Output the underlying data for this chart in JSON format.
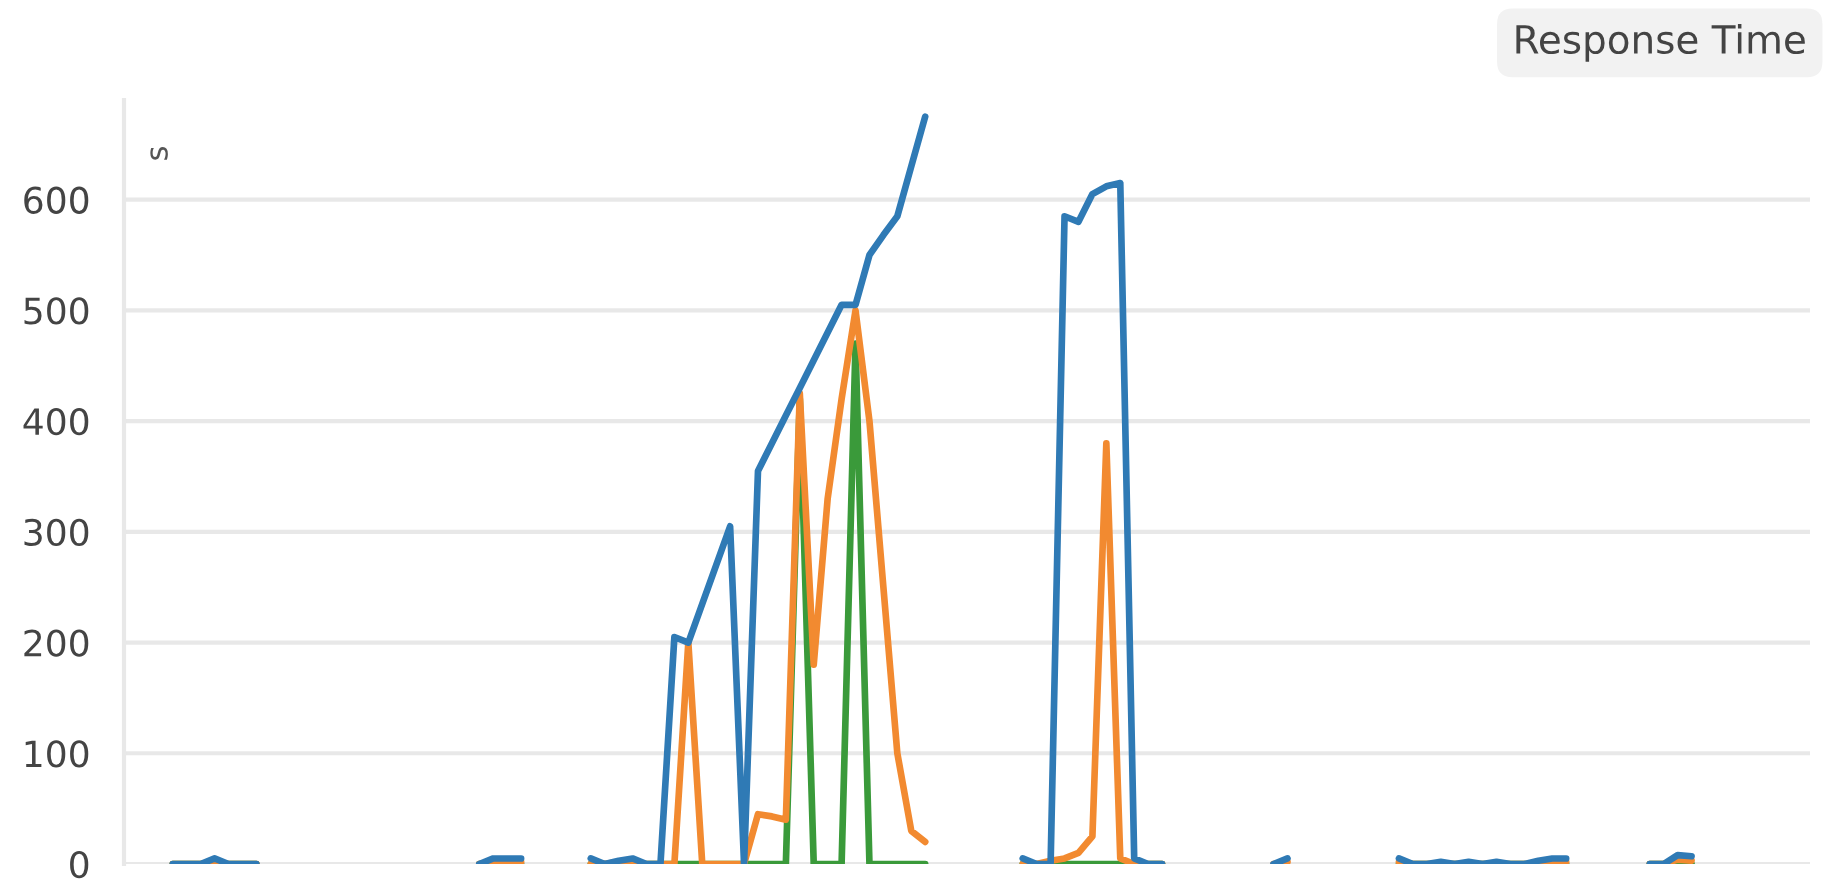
{
  "chart_data": {
    "type": "line",
    "title": "Response Time",
    "ylabel": "s",
    "categories": [
      null,
      null,
      null,
      null,
      null,
      null,
      null,
      null,
      null,
      null,
      null,
      null,
      null,
      null,
      null,
      null,
      null,
      null,
      null,
      null,
      null,
      null,
      null,
      null,
      null,
      null,
      null,
      null,
      null,
      null,
      null,
      null,
      null,
      null,
      null,
      null,
      null,
      null,
      null,
      null,
      null,
      null,
      null,
      null,
      null,
      null,
      null,
      null,
      null,
      null,
      null,
      null,
      null,
      null,
      null,
      null,
      null,
      null,
      null,
      null,
      null,
      null,
      null,
      null,
      null,
      null,
      null,
      null,
      null,
      null,
      null,
      null,
      null,
      null,
      null,
      null,
      null,
      null,
      null,
      null,
      null,
      null,
      null,
      null,
      null,
      null,
      null,
      null,
      null,
      null,
      null,
      null,
      null,
      null,
      null,
      null,
      null,
      null,
      null,
      null,
      null,
      null,
      null,
      null,
      null,
      null,
      null,
      null,
      null,
      null,
      null,
      null,
      null,
      null,
      null,
      null,
      null,
      null,
      null,
      null,
      null
    ],
    "series": [
      {
        "color": "#3a9a3a",
        "values": [
          null,
          null,
          null,
          0,
          0,
          0,
          0,
          0,
          0,
          0,
          null,
          null,
          null,
          null,
          null,
          null,
          null,
          null,
          null,
          null,
          null,
          null,
          null,
          null,
          null,
          0,
          0,
          0,
          0,
          null,
          null,
          null,
          null,
          0,
          0,
          0,
          0,
          0,
          0,
          0,
          0,
          0,
          0,
          0,
          0,
          0,
          0,
          0,
          420,
          0,
          0,
          0,
          470,
          0,
          0,
          0,
          0,
          0,
          null,
          null,
          null,
          null,
          null,
          null,
          0,
          0,
          0,
          0,
          0,
          0,
          0,
          0,
          0,
          0,
          0,
          null,
          null,
          null,
          null,
          null,
          null,
          null,
          null,
          null,
          null,
          null,
          null,
          null,
          null,
          null,
          null,
          0,
          0,
          0,
          0,
          0,
          0,
          0,
          0,
          0,
          0,
          0,
          0,
          0,
          null,
          null,
          null,
          null,
          null,
          0,
          0,
          0,
          0,
          null,
          null,
          null,
          null,
          null,
          null,
          null,
          null
        ]
      },
      {
        "color": "#f28a30",
        "values": [
          null,
          null,
          null,
          0,
          0,
          0,
          2,
          0,
          0,
          0,
          null,
          null,
          null,
          null,
          null,
          null,
          null,
          null,
          null,
          null,
          null,
          null,
          null,
          null,
          null,
          0,
          2,
          2,
          2,
          null,
          null,
          null,
          null,
          0,
          0,
          2,
          0,
          0,
          0,
          0,
          200,
          0,
          0,
          0,
          0,
          45,
          43,
          40,
          425,
          180,
          330,
          420,
          500,
          400,
          250,
          100,
          30,
          20,
          null,
          null,
          null,
          null,
          null,
          null,
          0,
          0,
          3,
          5,
          10,
          25,
          380,
          5,
          0,
          0,
          0,
          null,
          null,
          null,
          null,
          null,
          null,
          null,
          0,
          2,
          null,
          null,
          null,
          null,
          null,
          null,
          null,
          2,
          0,
          0,
          0,
          0,
          0,
          0,
          0,
          0,
          0,
          0,
          2,
          2,
          null,
          null,
          null,
          null,
          null,
          0,
          0,
          4,
          3,
          null,
          null,
          null,
          null,
          null,
          null,
          null,
          null
        ]
      },
      {
        "color": "#2f7ab5",
        "values": [
          null,
          null,
          null,
          0,
          0,
          0,
          5,
          0,
          0,
          0,
          null,
          null,
          null,
          null,
          null,
          null,
          null,
          null,
          null,
          null,
          null,
          null,
          null,
          null,
          null,
          0,
          5,
          5,
          5,
          null,
          null,
          null,
          null,
          5,
          0,
          3,
          5,
          0,
          0,
          205,
          200,
          235,
          270,
          305,
          0,
          355,
          380,
          405,
          430,
          455,
          480,
          505,
          505,
          550,
          568,
          585,
          630,
          675,
          null,
          null,
          null,
          null,
          null,
          null,
          5,
          0,
          0,
          585,
          580,
          605,
          612,
          615,
          5,
          0,
          0,
          null,
          null,
          null,
          null,
          null,
          null,
          null,
          0,
          5,
          null,
          null,
          null,
          null,
          null,
          null,
          null,
          5,
          0,
          0,
          2,
          0,
          2,
          0,
          2,
          0,
          0,
          3,
          5,
          5,
          null,
          null,
          null,
          null,
          null,
          0,
          0,
          8,
          7,
          null,
          null,
          null,
          null,
          null,
          null,
          null,
          null
        ]
      }
    ],
    "ylim": [
      0,
      690
    ],
    "yticks": [
      0,
      100,
      200,
      300,
      400,
      500,
      600
    ],
    "grid": "y",
    "line_style": "solid",
    "marker": "none"
  }
}
